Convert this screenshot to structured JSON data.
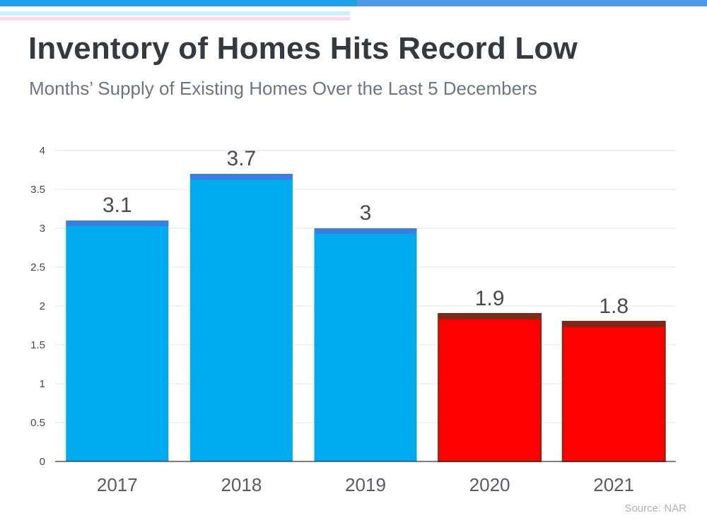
{
  "header": {
    "title": "Inventory of Homes Hits Record Low",
    "subtitle": "Months’ Supply of Existing Homes Over the Last 5 Decembers"
  },
  "footer": {
    "source": "Source: NAR"
  },
  "colors": {
    "top_bar_left": "#1aa3e8",
    "top_bar_right": "#4f97e8",
    "bar_blue": "#00aaee",
    "bar_blue_cap": "#3b7fe0",
    "bar_red": "#ff0000",
    "bar_red_edge": "#7a2b1a",
    "grid": "#e3e3e3"
  },
  "chart_data": {
    "type": "bar",
    "title": "",
    "xlabel": "",
    "ylabel": "",
    "categories": [
      "2017",
      "2018",
      "2019",
      "2020",
      "2021"
    ],
    "values": [
      3.1,
      3.7,
      3,
      1.9,
      1.8
    ],
    "data_labels": [
      "3.1",
      "3.7",
      "3",
      "1.9",
      "1.8"
    ],
    "bar_colors": [
      "#00aaee",
      "#00aaee",
      "#00aaee",
      "#ff0000",
      "#ff0000"
    ],
    "ylim": [
      0,
      4
    ],
    "yticks": [
      "0",
      "0.5",
      "1",
      "1.5",
      "2",
      "2.5",
      "3",
      "3.5",
      "4"
    ],
    "grid": true,
    "legend": "none"
  }
}
